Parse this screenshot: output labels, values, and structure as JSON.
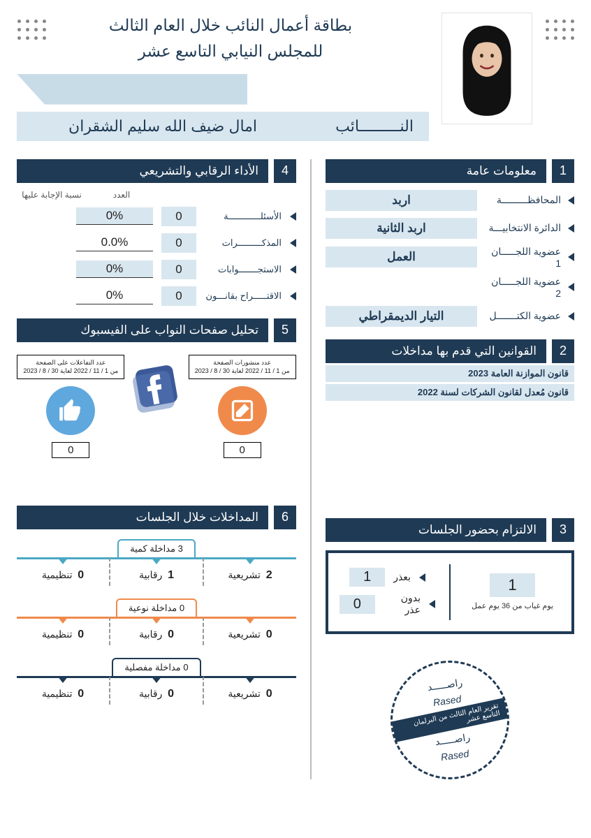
{
  "header": {
    "title_line1": "بطاقة أعمال النائب خلال العام الثالث",
    "title_line2": "للمجلس النيابي التاسع عشر",
    "member_label": "النـــــــــائب",
    "member_name": "امال ضيف الله سليم الشقران"
  },
  "section1": {
    "num": "1",
    "title": "معلومات عامة",
    "rows": [
      {
        "label": "المحافظـــــــــة",
        "value": "اربد"
      },
      {
        "label": "الدائرة الانتخابيـــة",
        "value": "اربد الثانية"
      },
      {
        "label": "عضوية اللجـــــان 1",
        "value": "العمل"
      },
      {
        "label": "عضوية اللجـــــان 2",
        "value": ""
      },
      {
        "label": "عضوية الكتـــــــل",
        "value": "التيار الديمقراطي"
      }
    ]
  },
  "section2": {
    "num": "2",
    "title": "القوانين التي قدم بها مداخلات",
    "laws": [
      "قانون الموازنة العامة 2023",
      "قانون مُعدل لقانون الشركات لسنة 2022"
    ]
  },
  "section3": {
    "num": "3",
    "title": "الالتزام بحضور الجلسات",
    "absent_total": "1",
    "absent_sub": "يوم غياب من 36 يوم عمل",
    "excused_label": "بعذر",
    "excused": "1",
    "unexcused_label": "بدون عذر",
    "unexcused": "0"
  },
  "section4": {
    "num": "4",
    "title": "الأداء الرقابي والتشريعي",
    "head_count": "العدد",
    "head_pct": "نسبة الإجابة عليها",
    "rows": [
      {
        "label": "الأسئلــــــــــــة",
        "count": "0",
        "pct": "0%",
        "shade": true
      },
      {
        "label": "المذكـــــــــرات",
        "count": "0",
        "pct": "0.0%",
        "shade": false
      },
      {
        "label": "الاستجـــــــوابات",
        "count": "0",
        "pct": "0%",
        "shade": true
      },
      {
        "label": "الاقتـــــراح بقانـــون",
        "count": "0",
        "pct": "0%",
        "shade": false
      }
    ]
  },
  "section5": {
    "num": "5",
    "title": "تحليل صفحات النواب على الفيسبوك",
    "posts_label": "عدد منشورات الصفحة",
    "interactions_label": "عدد التفاعلات على الصفحة",
    "date_range": "من 1 / 11 / 2022 لغاية 30 / 8 / 2023",
    "posts": "0",
    "interactions": "0"
  },
  "section6": {
    "num": "6",
    "title": "المداخلات خلال الجلسات",
    "groups": [
      {
        "title": "3   مداخلة كمية",
        "color": "teal",
        "cells": [
          {
            "n": "2",
            "t": "تشريعية"
          },
          {
            "n": "1",
            "t": "رقابية"
          },
          {
            "n": "0",
            "t": "تنظيمية"
          }
        ]
      },
      {
        "title": "0   مداخلة نوعية",
        "color": "orange",
        "cells": [
          {
            "n": "0",
            "t": "تشريعية"
          },
          {
            "n": "0",
            "t": "رقابية"
          },
          {
            "n": "0",
            "t": "تنظيمية"
          }
        ]
      },
      {
        "title": "0   مداخلة مفصلية",
        "color": "navy",
        "cells": [
          {
            "n": "0",
            "t": "تشريعية"
          },
          {
            "n": "0",
            "t": "رقابية"
          },
          {
            "n": "0",
            "t": "تنظيمية"
          }
        ]
      }
    ]
  },
  "stamp": {
    "ar": "راصـــــد",
    "en": "Rased",
    "band": "تقرير العام الثالث من البرلمان التاسع عشر"
  }
}
